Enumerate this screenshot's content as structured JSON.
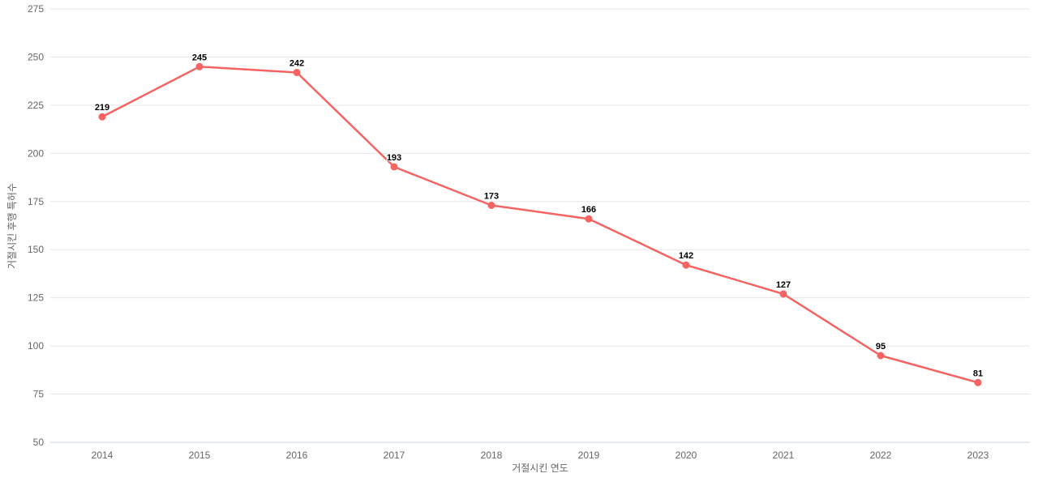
{
  "chart_data": {
    "type": "line",
    "categories": [
      "2014",
      "2015",
      "2016",
      "2017",
      "2018",
      "2019",
      "2020",
      "2021",
      "2022",
      "2023"
    ],
    "values": [
      219,
      245,
      242,
      193,
      173,
      166,
      142,
      127,
      95,
      81
    ],
    "data_labels": [
      "219",
      "245",
      "242",
      "193",
      "173",
      "166",
      "142",
      "127",
      "95",
      "81"
    ],
    "xlabel": "거절시킨 연도",
    "ylabel": "거절시킨 후행 특허수",
    "ylim": [
      50,
      275
    ],
    "ytick_step": 25,
    "ytick_labels": [
      "275",
      "250",
      "225",
      "200",
      "175",
      "150",
      "125",
      "100",
      "75",
      "50"
    ],
    "grid": "horizontal-only",
    "legend": "none",
    "colors": {
      "line": "#f56363",
      "marker": "#f56363",
      "gridline": "#e6e6e6",
      "axis_line": "#ccd6eb",
      "tick_label": "#666666",
      "axis_title": "#666666",
      "data_label": "#000000",
      "background": "#ffffff"
    }
  }
}
